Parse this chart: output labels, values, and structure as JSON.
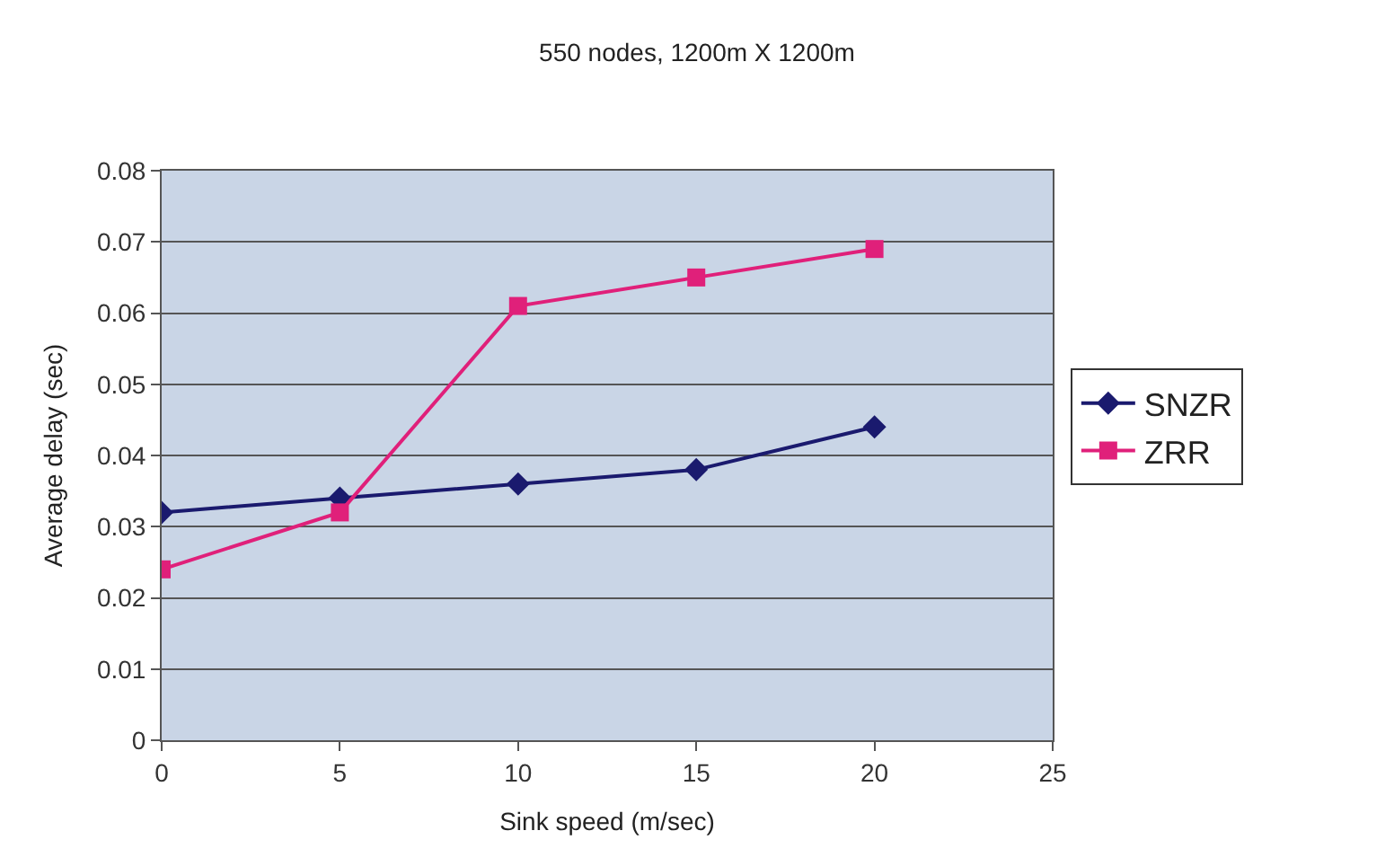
{
  "chart_data": {
    "type": "line",
    "title": "550 nodes, 1200m X 1200m",
    "xlabel": "Sink speed (m/sec)",
    "ylabel": "Average delay (sec)",
    "x": [
      0,
      5,
      10,
      15,
      20
    ],
    "series": [
      {
        "name": "SNZR",
        "color": "#1a1a6e",
        "marker": "diamond",
        "values": [
          0.032,
          0.034,
          0.036,
          0.038,
          0.044
        ]
      },
      {
        "name": "ZRR",
        "color": "#e0207a",
        "marker": "square",
        "values": [
          0.024,
          0.032,
          0.061,
          0.065,
          0.069
        ]
      }
    ],
    "xlim": [
      0,
      25
    ],
    "xticks": [
      0,
      5,
      10,
      15,
      20,
      25
    ],
    "ylim": [
      0,
      0.08
    ],
    "yticks": [
      0,
      0.01,
      0.02,
      0.03,
      0.04,
      0.05,
      0.06,
      0.07,
      0.08
    ],
    "grid": "y",
    "legend": "right",
    "line_style": "solid"
  }
}
